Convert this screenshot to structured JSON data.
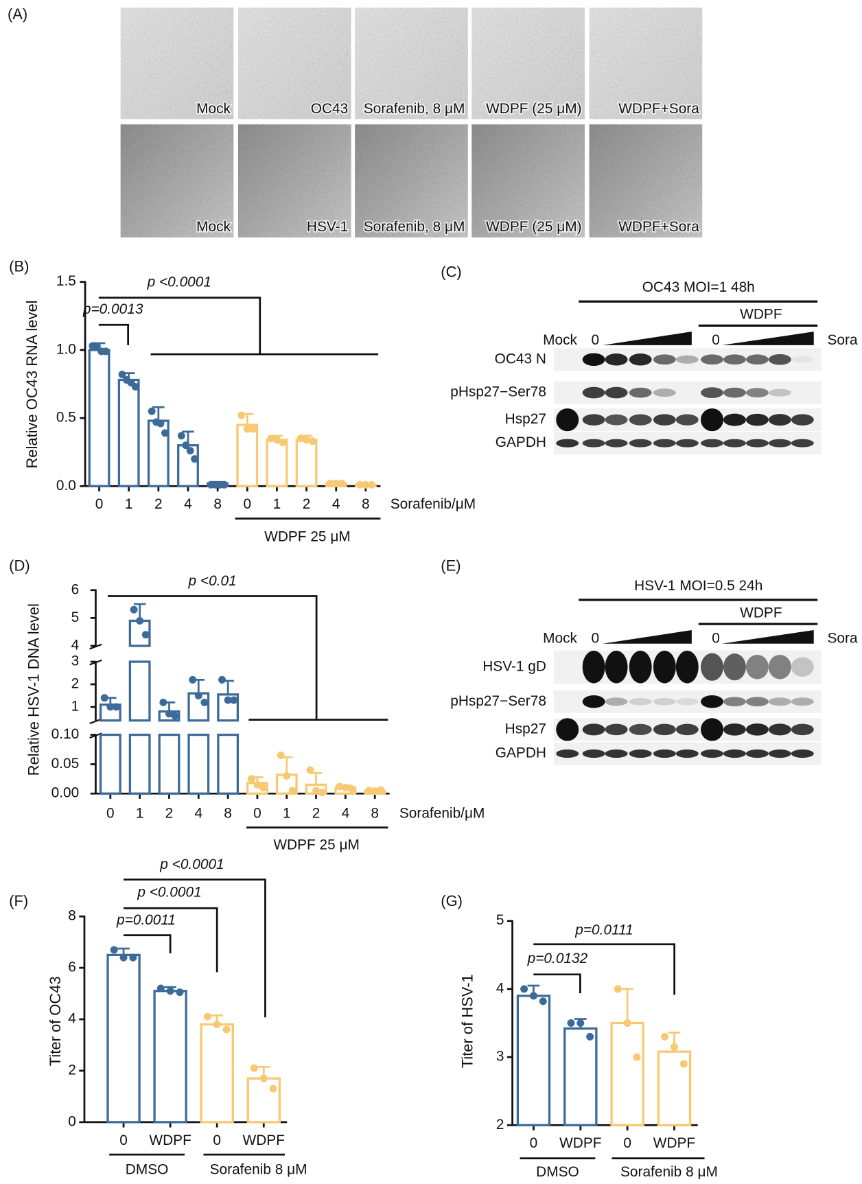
{
  "micrographs": {
    "panel": "(A)",
    "rows": [
      [
        "Mock",
        "OC43",
        "Sorafenib, 8 μM",
        "WDPF (25 μM)",
        "WDPF+Sora"
      ],
      [
        "Mock",
        "HSV-1",
        "Sorafenib, 8 μM",
        "WDPF (25 μM)",
        "WDPF+Sora"
      ]
    ]
  },
  "blots": [
    {
      "panel": "(C)",
      "header": "OC43 MOI=1 48h",
      "subheader": "WDPF",
      "lane_labels": [
        "Mock",
        "0",
        "0",
        "Sora"
      ],
      "rows": [
        "OC43 N",
        "pHsp27−Ser78",
        "Hsp27",
        "GAPDH"
      ]
    },
    {
      "panel": "(E)",
      "header": "HSV-1 MOI=0.5 24h",
      "subheader": "WDPF",
      "lane_labels": [
        "Mock",
        "0",
        "0",
        "Sora"
      ],
      "rows": [
        "HSV-1 gD",
        "pHsp27−Ser78",
        "Hsp27",
        "GAPDH"
      ]
    }
  ],
  "chart_data": [
    {
      "type": "bar",
      "panel": "(B)",
      "y_label": "Relative OC43 RNA level",
      "x_label": "Sorafenib/μM",
      "categories": [
        "0",
        "1",
        "2",
        "4",
        "8",
        "0",
        "1",
        "2",
        "4",
        "8"
      ],
      "series": [
        {
          "color": "#3d6b99",
          "values": [
            1.0,
            0.78,
            0.48,
            0.3,
            0.02,
            null,
            null,
            null,
            null,
            null
          ],
          "errors": [
            0.05,
            0.05,
            0.1,
            0.1,
            0.01,
            null,
            null,
            null,
            null,
            null
          ],
          "points": [
            [
              1.03,
              1.03,
              0.99,
              0.99
            ],
            [
              0.82,
              0.78,
              0.76,
              0.73
            ],
            [
              0.55,
              0.47,
              0.46,
              0.39
            ],
            [
              0.37,
              0.3,
              0.26,
              0.2
            ],
            [
              0.01,
              0.01,
              0.01,
              0.01
            ],
            null,
            null,
            null,
            null,
            null
          ]
        },
        {
          "color": "#f7c972",
          "values": [
            null,
            null,
            null,
            null,
            null,
            0.45,
            0.34,
            0.34,
            0.02,
            0.01
          ],
          "errors": [
            null,
            null,
            null,
            null,
            null,
            0.08,
            0.03,
            0.03,
            0.01,
            0.01
          ],
          "points": [
            null,
            null,
            null,
            null,
            null,
            [
              0.52,
              0.42,
              0.42
            ],
            [
              0.35,
              0.34,
              0.32
            ],
            [
              0.35,
              0.34,
              0.33
            ],
            [
              0.02,
              0.02,
              0.02
            ],
            [
              0.01,
              0.01,
              0.01
            ]
          ]
        }
      ],
      "ylim": [
        0,
        1.5
      ],
      "yticks": [
        {
          "value": 0,
          "label": "0.0"
        },
        0.5,
        {
          "value": 1,
          "label": "1.0"
        },
        1.5
      ],
      "groups": [
        "WDPF 25 μM"
      ],
      "annotations": [
        "p <0.0001",
        "p=0.0013"
      ]
    },
    {
      "type": "bar",
      "panel": "(D)",
      "y_label": "Relative HSV-1 DNA level",
      "x_label": "Sorafenib/μM",
      "categories": [
        "0",
        "1",
        "2",
        "4",
        "8",
        "0",
        "1",
        "2",
        "4",
        "8"
      ],
      "series": [
        {
          "color": "#3d6b99",
          "values": [
            1.1,
            4.9,
            0.8,
            1.6,
            1.55,
            null,
            null,
            null,
            null,
            null
          ],
          "errors": [
            0.3,
            0.6,
            0.4,
            0.6,
            0.6,
            null,
            null,
            null,
            null,
            null
          ],
          "points": [
            [
              1.4,
              1.0,
              1.0
            ],
            [
              5.3,
              4.9,
              4.4
            ],
            [
              1.2,
              0.7,
              0.6
            ],
            [
              2.2,
              1.5,
              1.2
            ],
            [
              2.2,
              1.3,
              1.3
            ],
            null,
            null,
            null,
            null,
            null
          ]
        },
        {
          "color": "#f7c972",
          "values": [
            null,
            null,
            null,
            null,
            null,
            0.018,
            0.032,
            0.015,
            0.01,
            0.005
          ],
          "errors": [
            null,
            null,
            null,
            null,
            null,
            0.01,
            0.03,
            0.02,
            0.004,
            0.002
          ],
          "points": [
            null,
            null,
            null,
            null,
            null,
            [
              0.025,
              0.015,
              0.01
            ],
            [
              0.065,
              0.03,
              0.005
            ],
            [
              0.04,
              0.005,
              0.002
            ],
            [
              0.012,
              0.01,
              0.008
            ],
            [
              0.005,
              0.004,
              0.006
            ]
          ]
        }
      ],
      "y_segments": [
        {
          "ylim": [
            0,
            0.1
          ],
          "yticks": [
            {
              "value": 0,
              "label": "0.00"
            },
            0.05,
            {
              "value": 0.1,
              "label": "0.10"
            }
          ]
        },
        {
          "ylim": [
            0.4,
            3
          ],
          "yticks": [
            1,
            2,
            3
          ]
        },
        {
          "ylim": [
            4,
            6
          ],
          "yticks": [
            4,
            5,
            6
          ]
        }
      ],
      "groups": [
        "WDPF 25 μM"
      ],
      "annotations": [
        "p <0.01"
      ]
    },
    {
      "type": "bar",
      "panel": "(F)",
      "y_label": "Titer of OC43",
      "categories": [
        "0",
        "WDPF",
        "0",
        "WDPF"
      ],
      "series": [
        {
          "color": "#3d6b99",
          "values": [
            6.5,
            5.1,
            null,
            null
          ],
          "errors": [
            0.25,
            0.15,
            null,
            null
          ],
          "points": [
            [
              6.7,
              6.4,
              6.4
            ],
            [
              5.2,
              5.1,
              5.05
            ],
            null,
            null
          ]
        },
        {
          "color": "#f7c972",
          "values": [
            null,
            null,
            3.8,
            1.7
          ],
          "errors": [
            null,
            null,
            0.35,
            0.45
          ],
          "points": [
            null,
            null,
            [
              4.1,
              3.8,
              3.6
            ],
            [
              2.1,
              1.7,
              1.3
            ]
          ]
        }
      ],
      "ylim": [
        0,
        8
      ],
      "yticks": [
        0,
        2,
        4,
        6,
        8
      ],
      "groups": [
        "DMSO",
        "Sorafenib 8 μM"
      ],
      "annotations": [
        "p <0.0001",
        "p <0.0001",
        "p=0.0011"
      ]
    },
    {
      "type": "bar",
      "panel": "(G)",
      "y_label": "Titer of HSV-1",
      "categories": [
        "0",
        "WDPF",
        "0",
        "WDPF"
      ],
      "series": [
        {
          "color": "#3d6b99",
          "values": [
            3.9,
            3.42,
            null,
            null
          ],
          "errors": [
            0.15,
            0.14,
            null,
            null
          ],
          "points": [
            [
              4.0,
              3.9,
              3.82
            ],
            [
              3.5,
              3.5,
              3.3
            ],
            null,
            null
          ]
        },
        {
          "color": "#f7c972",
          "values": [
            null,
            null,
            3.5,
            3.08
          ],
          "errors": [
            null,
            null,
            0.5,
            0.28
          ],
          "points": [
            null,
            null,
            [
              4.0,
              3.5,
              3.0
            ],
            [
              3.3,
              3.15,
              2.9
            ]
          ]
        }
      ],
      "ylim": [
        2,
        5
      ],
      "yticks": [
        2,
        3,
        4,
        5
      ],
      "groups": [
        "DMSO",
        "Sorafenib 8 μM"
      ],
      "annotations": [
        "p=0.0111",
        "p=0.0132"
      ]
    }
  ]
}
